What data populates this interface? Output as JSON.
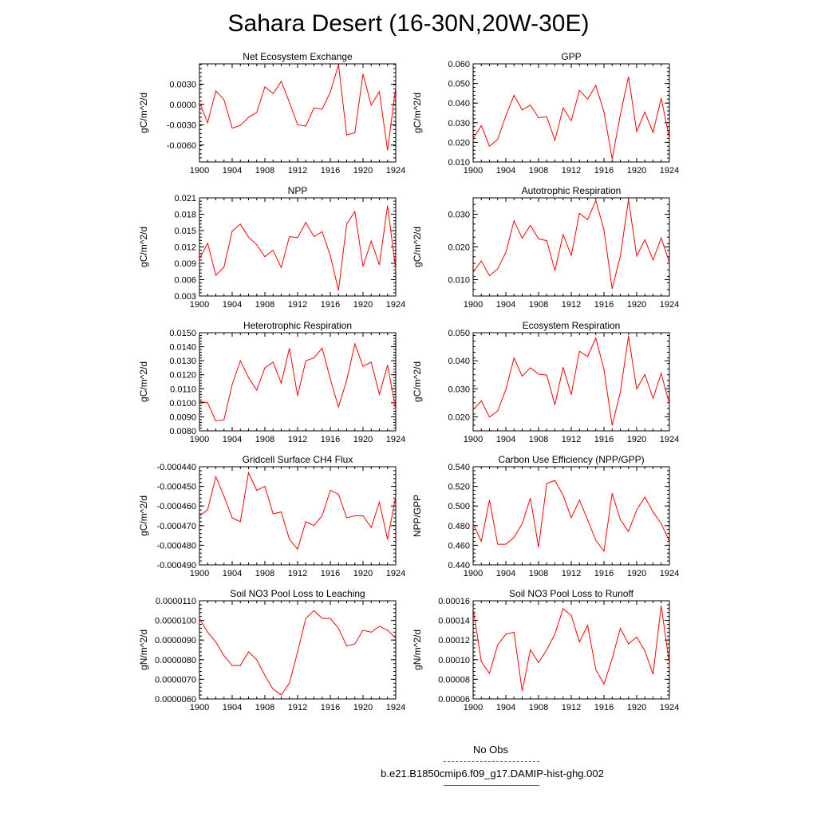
{
  "title": "Sahara Desert (16-30N,20W-30E)",
  "legend": [
    {
      "label": "No Obs",
      "color": "#5a5ad8",
      "style": "dashed"
    },
    {
      "label": "b.e21.B1850cmip6.f09_g17.DAMIP-hist-ghg.002",
      "color": "#e03030",
      "style": "solid"
    }
  ],
  "line_color": "#ff0000",
  "chart_data": [
    {
      "type": "line",
      "title": "Net Ecosystem Exchange",
      "ylabel": "gC/m^2/d",
      "xlim": [
        1900,
        1924
      ],
      "ylim": [
        -0.0085,
        0.006
      ],
      "xticks": [
        1900,
        1904,
        1908,
        1912,
        1916,
        1920,
        1924
      ],
      "xtick_labels": [
        "1900",
        "1904",
        "1908",
        "1912",
        "1916",
        "1920",
        "1924"
      ],
      "yticks": [
        -0.006,
        -0.003,
        0.0,
        0.003
      ],
      "ytick_labels": [
        "-0.0060",
        "-0.0030",
        "0.0000",
        "0.0030"
      ],
      "x": [
        1900,
        1901,
        1902,
        1903,
        1904,
        1905,
        1906,
        1907,
        1908,
        1909,
        1910,
        1911,
        1912,
        1913,
        1914,
        1915,
        1916,
        1917,
        1918,
        1919,
        1920,
        1921,
        1922,
        1923,
        1924
      ],
      "series": [
        {
          "values": [
            0.0003,
            -0.0027,
            0.002,
            0.0007,
            -0.0035,
            -0.0031,
            -0.0019,
            -0.0012,
            0.0026,
            0.0016,
            0.0034,
            0.0003,
            -0.003,
            -0.0032,
            -0.0005,
            -0.0007,
            0.0018,
            0.0059,
            -0.0045,
            -0.0042,
            0.0045,
            -0.0001,
            0.0019,
            -0.0068,
            0.0026
          ]
        }
      ]
    },
    {
      "type": "line",
      "title": "GPP",
      "ylabel": "gC/m^2/d",
      "xlim": [
        1900,
        1924
      ],
      "ylim": [
        0.01,
        0.06
      ],
      "xticks": [
        1900,
        1904,
        1908,
        1912,
        1916,
        1920,
        1924
      ],
      "xtick_labels": [
        "1900",
        "1904",
        "1908",
        "1912",
        "1916",
        "1920",
        "1924"
      ],
      "yticks": [
        0.01,
        0.02,
        0.03,
        0.04,
        0.05,
        0.06
      ],
      "ytick_labels": [
        "0.010",
        "0.020",
        "0.030",
        "0.040",
        "0.050",
        "0.060"
      ],
      "x": [
        1900,
        1901,
        1902,
        1903,
        1904,
        1905,
        1906,
        1907,
        1908,
        1909,
        1910,
        1911,
        1912,
        1913,
        1914,
        1915,
        1916,
        1917,
        1918,
        1919,
        1920,
        1921,
        1922,
        1923,
        1924
      ],
      "series": [
        {
          "values": [
            0.022,
            0.0285,
            0.018,
            0.0215,
            0.0335,
            0.044,
            0.0365,
            0.039,
            0.0325,
            0.033,
            0.021,
            0.0375,
            0.031,
            0.0465,
            0.042,
            0.049,
            0.0355,
            0.0115,
            0.034,
            0.0535,
            0.0255,
            0.0355,
            0.025,
            0.0425,
            0.022
          ]
        }
      ]
    },
    {
      "type": "line",
      "title": "NPP",
      "ylabel": "gC/m^2/d",
      "xlim": [
        1900,
        1924
      ],
      "ylim": [
        0.003,
        0.021
      ],
      "xticks": [
        1900,
        1904,
        1908,
        1912,
        1916,
        1920,
        1924
      ],
      "xtick_labels": [
        "1900",
        "1904",
        "1908",
        "1912",
        "1916",
        "1920",
        "1924"
      ],
      "yticks": [
        0.003,
        0.006,
        0.009,
        0.012,
        0.015,
        0.018,
        0.021
      ],
      "ytick_labels": [
        "0.003",
        "0.006",
        "0.009",
        "0.012",
        "0.015",
        "0.018",
        "0.021"
      ],
      "x": [
        1900,
        1901,
        1902,
        1903,
        1904,
        1905,
        1906,
        1907,
        1908,
        1909,
        1910,
        1911,
        1912,
        1913,
        1914,
        1915,
        1916,
        1917,
        1918,
        1919,
        1920,
        1921,
        1922,
        1923,
        1924
      ],
      "series": [
        {
          "values": [
            0.0098,
            0.0127,
            0.0068,
            0.0083,
            0.0149,
            0.0162,
            0.0138,
            0.0124,
            0.0102,
            0.0114,
            0.0082,
            0.0139,
            0.0137,
            0.0165,
            0.0139,
            0.0148,
            0.0104,
            0.004,
            0.0162,
            0.0185,
            0.0084,
            0.0131,
            0.0087,
            0.0196,
            0.0078
          ]
        }
      ]
    },
    {
      "type": "line",
      "title": "Autotrophic Respiration",
      "ylabel": "gC/m^2/d",
      "xlim": [
        1900,
        1924
      ],
      "ylim": [
        0.005,
        0.035
      ],
      "xticks": [
        1900,
        1904,
        1908,
        1912,
        1916,
        1920,
        1924
      ],
      "xtick_labels": [
        "1900",
        "1904",
        "1908",
        "1912",
        "1916",
        "1920",
        "1924"
      ],
      "yticks": [
        0.01,
        0.02,
        0.03
      ],
      "ytick_labels": [
        "0.010",
        "0.020",
        "0.030"
      ],
      "x": [
        1900,
        1901,
        1902,
        1903,
        1904,
        1905,
        1906,
        1907,
        1908,
        1909,
        1910,
        1911,
        1912,
        1913,
        1914,
        1915,
        1916,
        1917,
        1918,
        1919,
        1920,
        1921,
        1922,
        1923,
        1924
      ],
      "series": [
        {
          "values": [
            0.0122,
            0.0157,
            0.0112,
            0.0133,
            0.0183,
            0.028,
            0.0227,
            0.0266,
            0.0225,
            0.0219,
            0.0128,
            0.0238,
            0.0174,
            0.0303,
            0.0283,
            0.0342,
            0.0252,
            0.0072,
            0.0172,
            0.0345,
            0.0172,
            0.0222,
            0.016,
            0.0228,
            0.0151
          ]
        }
      ]
    },
    {
      "type": "line",
      "title": "Heterotrophic Respiration",
      "ylabel": "gC/m^2/d",
      "xlim": [
        1900,
        1924
      ],
      "ylim": [
        0.008,
        0.015
      ],
      "xticks": [
        1900,
        1904,
        1908,
        1912,
        1916,
        1920,
        1924
      ],
      "xtick_labels": [
        "1900",
        "1904",
        "1908",
        "1912",
        "1916",
        "1920",
        "1924"
      ],
      "yticks": [
        0.008,
        0.009,
        0.01,
        0.011,
        0.012,
        0.013,
        0.014,
        0.015
      ],
      "ytick_labels": [
        "0.0080",
        "0.0090",
        "0.0100",
        "0.0110",
        "0.0120",
        "0.0130",
        "0.0140",
        "0.0150"
      ],
      "x": [
        1900,
        1901,
        1902,
        1903,
        1904,
        1905,
        1906,
        1907,
        1908,
        1909,
        1910,
        1911,
        1912,
        1913,
        1914,
        1915,
        1916,
        1917,
        1918,
        1919,
        1920,
        1921,
        1922,
        1923,
        1924
      ],
      "series": [
        {
          "values": [
            0.0101,
            0.01,
            0.0087,
            0.0088,
            0.0113,
            0.013,
            0.0118,
            0.0109,
            0.0125,
            0.0129,
            0.0114,
            0.0139,
            0.0105,
            0.013,
            0.0132,
            0.0139,
            0.0117,
            0.0097,
            0.0116,
            0.0142,
            0.0126,
            0.0129,
            0.0106,
            0.0127,
            0.0095
          ]
        }
      ]
    },
    {
      "type": "line",
      "title": "Ecosystem Respiration",
      "ylabel": "gC/m^2/d",
      "xlim": [
        1900,
        1924
      ],
      "ylim": [
        0.015,
        0.05
      ],
      "xticks": [
        1900,
        1904,
        1908,
        1912,
        1916,
        1920,
        1924
      ],
      "xtick_labels": [
        "1900",
        "1904",
        "1908",
        "1912",
        "1916",
        "1920",
        "1924"
      ],
      "yticks": [
        0.02,
        0.03,
        0.04,
        0.05
      ],
      "ytick_labels": [
        "0.020",
        "0.030",
        "0.040",
        "0.050"
      ],
      "x": [
        1900,
        1901,
        1902,
        1903,
        1904,
        1905,
        1906,
        1907,
        1908,
        1909,
        1910,
        1911,
        1912,
        1913,
        1914,
        1915,
        1916,
        1917,
        1918,
        1919,
        1920,
        1921,
        1922,
        1923,
        1924
      ],
      "series": [
        {
          "values": [
            0.0225,
            0.0257,
            0.0199,
            0.0221,
            0.0297,
            0.041,
            0.0345,
            0.0375,
            0.0352,
            0.0349,
            0.0243,
            0.0377,
            0.0279,
            0.0434,
            0.0415,
            0.0481,
            0.0369,
            0.0169,
            0.0288,
            0.0488,
            0.0299,
            0.0351,
            0.0266,
            0.0355,
            0.0246
          ]
        }
      ]
    },
    {
      "type": "line",
      "title": "Gridcell Surface CH4 Flux",
      "ylabel": "gC/m^2/d",
      "xlim": [
        1900,
        1924
      ],
      "ylim": [
        -0.00049,
        -0.00044
      ],
      "xticks": [
        1900,
        1904,
        1908,
        1912,
        1916,
        1920,
        1924
      ],
      "xtick_labels": [
        "1900",
        "1904",
        "1908",
        "1912",
        "1916",
        "1920",
        "1924"
      ],
      "yticks": [
        -0.00049,
        -0.00048,
        -0.00047,
        -0.00046,
        -0.00045,
        -0.00044
      ],
      "ytick_labels": [
        "-0.000490",
        "-0.000480",
        "-0.000470",
        "-0.000460",
        "-0.000450",
        "-0.000440"
      ],
      "x": [
        1900,
        1901,
        1902,
        1903,
        1904,
        1905,
        1906,
        1907,
        1908,
        1909,
        1910,
        1911,
        1912,
        1913,
        1914,
        1915,
        1916,
        1917,
        1918,
        1919,
        1920,
        1921,
        1922,
        1923,
        1924
      ],
      "series": [
        {
          "values": [
            -0.000465,
            -0.000462,
            -0.000445,
            -0.000455,
            -0.000466,
            -0.000468,
            -0.000443,
            -0.000452,
            -0.00045,
            -0.000464,
            -0.000463,
            -0.000477,
            -0.000482,
            -0.000468,
            -0.00047,
            -0.000465,
            -0.000452,
            -0.000454,
            -0.000466,
            -0.000465,
            -0.000465,
            -0.000471,
            -0.000458,
            -0.000477,
            -0.000455
          ]
        }
      ]
    },
    {
      "type": "line",
      "title": "Carbon Use Efficiency (NPP/GPP)",
      "ylabel": "NPP/GPP",
      "xlim": [
        1900,
        1924
      ],
      "ylim": [
        0.44,
        0.54
      ],
      "xticks": [
        1900,
        1904,
        1908,
        1912,
        1916,
        1920,
        1924
      ],
      "xtick_labels": [
        "1900",
        "1904",
        "1908",
        "1912",
        "1916",
        "1920",
        "1924"
      ],
      "yticks": [
        0.44,
        0.46,
        0.48,
        0.5,
        0.52,
        0.54
      ],
      "ytick_labels": [
        "0.440",
        "0.460",
        "0.480",
        "0.500",
        "0.520",
        "0.540"
      ],
      "x": [
        1900,
        1901,
        1902,
        1903,
        1904,
        1905,
        1906,
        1907,
        1908,
        1909,
        1910,
        1911,
        1912,
        1913,
        1914,
        1915,
        1916,
        1917,
        1918,
        1919,
        1920,
        1921,
        1922,
        1923,
        1924
      ],
      "series": [
        {
          "values": [
            0.482,
            0.464,
            0.506,
            0.461,
            0.461,
            0.468,
            0.482,
            0.508,
            0.458,
            0.523,
            0.526,
            0.511,
            0.488,
            0.506,
            0.486,
            0.465,
            0.454,
            0.513,
            0.486,
            0.474,
            0.496,
            0.509,
            0.494,
            0.482,
            0.464
          ]
        }
      ]
    },
    {
      "type": "line",
      "title": "Soil NO3 Pool Loss to Leaching",
      "ylabel": "gN/m^2/d",
      "xlim": [
        1900,
        1924
      ],
      "ylim": [
        6e-06,
        1.1e-05
      ],
      "xticks": [
        1900,
        1904,
        1908,
        1912,
        1916,
        1920,
        1924
      ],
      "xtick_labels": [
        "1900",
        "1904",
        "1908",
        "1912",
        "1916",
        "1920",
        "1924"
      ],
      "yticks": [
        6e-06,
        7e-06,
        8e-06,
        9e-06,
        1e-05,
        1.1e-05
      ],
      "ytick_labels": [
        "0.0000060",
        "0.0000070",
        "0.0000080",
        "0.0000090",
        "0.0000100",
        "0.0000110"
      ],
      "x": [
        1900,
        1901,
        1902,
        1903,
        1904,
        1905,
        1906,
        1907,
        1908,
        1909,
        1910,
        1911,
        1912,
        1913,
        1914,
        1915,
        1916,
        1917,
        1918,
        1919,
        1920,
        1921,
        1922,
        1923,
        1924
      ],
      "series": [
        {
          "values": [
            1.01e-05,
            9.4e-06,
            8.9e-06,
            8.2e-06,
            7.7e-06,
            7.7e-06,
            8.4e-06,
            8e-06,
            7.2e-06,
            6.5e-06,
            6.2e-06,
            6.8e-06,
            8.4e-06,
            1.01e-05,
            1.05e-05,
            1.01e-05,
            1.01e-05,
            9.6e-06,
            8.7e-06,
            8.8e-06,
            9.5e-06,
            9.4e-06,
            9.7e-06,
            9.5e-06,
            9.1e-06
          ]
        }
      ]
    },
    {
      "type": "line",
      "title": "Soil NO3 Pool Loss to Runoff",
      "ylabel": "gN/m^2/d",
      "xlim": [
        1900,
        1924
      ],
      "ylim": [
        6e-05,
        0.00016
      ],
      "xticks": [
        1900,
        1904,
        1908,
        1912,
        1916,
        1920,
        1924
      ],
      "xtick_labels": [
        "1900",
        "1904",
        "1908",
        "1912",
        "1916",
        "1920",
        "1924"
      ],
      "yticks": [
        6e-05,
        8e-05,
        0.0001,
        0.00012,
        0.00014,
        0.00016
      ],
      "ytick_labels": [
        "0.00006",
        "0.00008",
        "0.00010",
        "0.00012",
        "0.00014",
        "0.00016"
      ],
      "x": [
        1900,
        1901,
        1902,
        1903,
        1904,
        1905,
        1906,
        1907,
        1908,
        1909,
        1910,
        1911,
        1912,
        1913,
        1914,
        1915,
        1916,
        1917,
        1918,
        1919,
        1920,
        1921,
        1922,
        1923,
        1924
      ],
      "series": [
        {
          "values": [
            0.000152,
            9.8e-05,
            8.6e-05,
            0.000115,
            0.000126,
            0.000128,
            6.8e-05,
            0.00011,
            9.7e-05,
            0.00011,
            0.000126,
            0.000152,
            0.000145,
            0.000118,
            0.000135,
            9e-05,
            7.5e-05,
            0.000101,
            0.000132,
            0.000116,
            0.000123,
            0.000109,
            8.5e-05,
            0.000155,
            9.5e-05
          ]
        }
      ]
    }
  ]
}
